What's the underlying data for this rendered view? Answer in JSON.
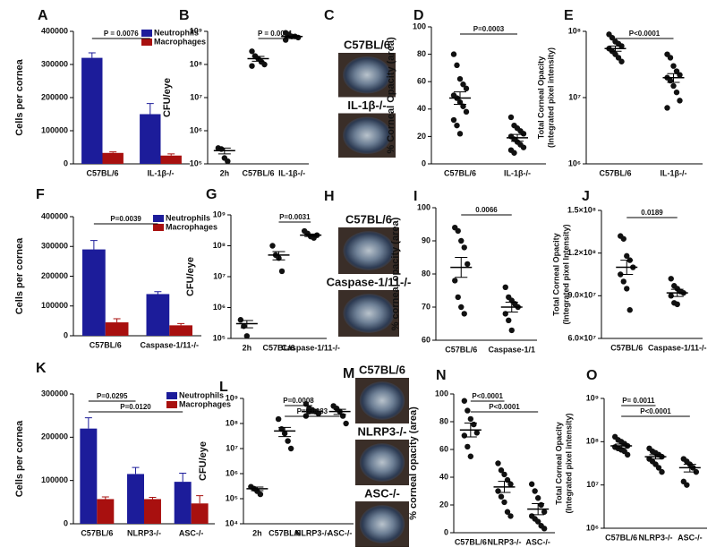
{
  "chart_data": [
    {
      "type": "bar",
      "panel": "A",
      "ylabel": "Cells per cornea",
      "categories": [
        "C57BL/6",
        "IL-1β-/-"
      ],
      "series": [
        {
          "name": "Neutrophils",
          "color": "#1c1c9a",
          "values": [
            320000,
            150000
          ],
          "errors": [
            15000,
            32000
          ]
        },
        {
          "name": "Macrophages",
          "color": "#a8100f",
          "values": [
            33000,
            25000
          ],
          "errors": [
            3000,
            5000
          ]
        }
      ],
      "ylim": [
        0,
        400000
      ],
      "yticks": [
        0,
        100000,
        200000,
        300000,
        400000
      ],
      "legend": "upper right",
      "brackets": [
        {
          "text": "P = 0.0076",
          "from": 0,
          "to": 1
        }
      ]
    },
    {
      "type": "dotplot",
      "panel": "B",
      "ylabel": "CFU/eye",
      "categories": [
        "2h",
        "C57BL/6",
        "IL-1β-/-"
      ],
      "log": true,
      "points": [
        [
          300000,
          280000,
          150000,
          120000
        ],
        [
          250000000,
          180000000,
          150000000,
          120000000,
          100000000,
          90000000
        ],
        [
          900000000,
          800000000,
          700000000,
          700000000,
          650000000,
          550000000
        ]
      ],
      "means": [
        250000,
        150000000,
        700000000
      ],
      "sems": [
        50000,
        25000000,
        50000000
      ],
      "ylim": [
        100000,
        1000000000
      ],
      "yticks": [
        {
          "value": 100000,
          "label": "10⁵"
        },
        {
          "value": 1000000,
          "label": "10⁶"
        },
        {
          "value": 10000000,
          "label": "10⁷"
        },
        {
          "value": 100000000,
          "label": "10⁸"
        },
        {
          "value": 1000000000,
          "label": "10⁹"
        }
      ],
      "brackets": [
        {
          "text": "P = 0.0001",
          "from": 1,
          "to": 2
        }
      ]
    },
    {
      "type": "image",
      "panel": "C",
      "labels": [
        "C57BL/6",
        "IL-1β-/-"
      ]
    },
    {
      "type": "dotplot",
      "panel": "D",
      "ylabel": "% Corneal  Opacity (area)",
      "categories": [
        "C57BL/6",
        "IL-1β-/-"
      ],
      "points": [
        [
          80,
          72,
          62,
          58,
          55,
          50,
          48,
          45,
          42,
          38,
          32,
          28,
          22
        ],
        [
          34,
          28,
          26,
          24,
          22,
          20,
          18,
          16,
          14,
          12,
          10,
          8
        ]
      ],
      "means": [
        48,
        19
      ],
      "sems": [
        4.5,
        2.5
      ],
      "ylim": [
        0,
        100
      ],
      "yticks": [
        0,
        20,
        40,
        60,
        80,
        100
      ],
      "brackets": [
        {
          "text": "P=0.0003",
          "from": 0,
          "to": 1
        }
      ]
    },
    {
      "type": "dotplot",
      "panel": "E",
      "ylabel": [
        "Total Corneal Opacity",
        "(Integrated pixel intensity)"
      ],
      "categories": [
        "C57BL/6",
        "IL-1β-/-"
      ],
      "log": true,
      "points": [
        [
          90000000,
          80000000,
          70000000,
          65000000,
          60000000,
          55000000,
          50000000,
          45000000,
          40000000,
          35000000
        ],
        [
          45000000,
          40000000,
          30000000,
          25000000,
          22000000,
          20000000,
          18000000,
          15000000,
          12000000,
          9000000,
          7000000
        ]
      ],
      "means": [
        55000000,
        20000000
      ],
      "sems": [
        5000000,
        3000000
      ],
      "ylim": [
        1000000,
        100000000
      ],
      "yticks": [
        {
          "value": 1000000,
          "label": "10⁶"
        },
        {
          "value": 10000000,
          "label": "10⁷"
        },
        {
          "value": 100000000,
          "label": "10⁸"
        }
      ],
      "brackets": [
        {
          "text": "P<0.0001",
          "from": 0,
          "to": 1
        }
      ]
    },
    {
      "type": "bar",
      "panel": "F",
      "ylabel": "Cells per cornea",
      "categories": [
        "C57BL/6",
        "Caspase-1/11-/-"
      ],
      "series": [
        {
          "name": "Neutrophils",
          "color": "#1c1c9a",
          "values": [
            290000,
            140000
          ],
          "errors": [
            30000,
            8000
          ]
        },
        {
          "name": "Macrophages",
          "color": "#a8100f",
          "values": [
            45000,
            35000
          ],
          "errors": [
            12000,
            6000
          ]
        }
      ],
      "ylim": [
        0,
        400000
      ],
      "yticks": [
        0,
        100000,
        200000,
        300000,
        400000
      ],
      "legend": "upper right",
      "brackets": [
        {
          "text": "P=0.0039",
          "from": 0,
          "to": 1
        }
      ]
    },
    {
      "type": "dotplot",
      "panel": "G",
      "ylabel": "CFU/eye",
      "categories": [
        "2h",
        "C57BL/6",
        "Caspase-1/11-/-"
      ],
      "log": true,
      "points": [
        [
          400000,
          250000,
          120000
        ],
        [
          100000000,
          50000000,
          40000000,
          15000000
        ],
        [
          300000000,
          250000000,
          200000000,
          180000000,
          220000000
        ]
      ],
      "means": [
        300000,
        50000000,
        220000000
      ],
      "sems": [
        80000,
        15000000,
        20000000
      ],
      "ylim": [
        100000,
        1000000000
      ],
      "yticks": [
        {
          "value": 100000,
          "label": "10⁵"
        },
        {
          "value": 1000000,
          "label": "10⁶"
        },
        {
          "value": 10000000,
          "label": "10⁷"
        },
        {
          "value": 100000000,
          "label": "10⁸"
        },
        {
          "value": 1000000000,
          "label": "10⁹"
        }
      ],
      "brackets": [
        {
          "text": "P=0.0031",
          "from": 1,
          "to": 2
        }
      ]
    },
    {
      "type": "image",
      "panel": "H",
      "labels": [
        "C57BL/6",
        "Caspase-1/11-/-"
      ]
    },
    {
      "type": "dotplot",
      "panel": "I",
      "ylabel": "% corneal opacity (area)",
      "categories": [
        "C57BL/6",
        "Caspase-1/1"
      ],
      "points": [
        [
          94,
          93,
          90,
          88,
          83,
          78,
          73,
          70,
          68
        ],
        [
          76,
          73,
          72,
          71,
          70,
          68,
          66,
          63
        ]
      ],
      "means": [
        82,
        70
      ],
      "sems": [
        3,
        1.5
      ],
      "ylim": [
        60,
        100
      ],
      "yticks": [
        60,
        70,
        80,
        90,
        100
      ],
      "brackets": [
        {
          "text": "0.0066",
          "from": 0,
          "to": 1
        }
      ]
    },
    {
      "type": "dotplot",
      "panel": "J",
      "ylabel": [
        "Total Corneal Opacity",
        "(Integrated pixel Intensity)"
      ],
      "categories": [
        "C57BL/6",
        "Caspase-1/11-/-"
      ],
      "points": [
        [
          132000000,
          130000000,
          118000000,
          115000000,
          110000000,
          105000000,
          100000000,
          95000000,
          80000000
        ],
        [
          102000000,
          97000000,
          95000000,
          93000000,
          92000000,
          90000000,
          85000000,
          84000000
        ]
      ],
      "means": [
        110000000,
        92000000
      ],
      "sems": [
        5000000,
        2500000
      ],
      "ylim": [
        60000000,
        150000000
      ],
      "yticks": [
        {
          "value": 60000000,
          "label": "6.0×10⁷"
        },
        {
          "value": 90000000,
          "label": "9.0×10⁷"
        },
        {
          "value": 120000000,
          "label": "1.2×10⁸"
        },
        {
          "value": 150000000,
          "label": "1.5×10⁸"
        }
      ],
      "brackets": [
        {
          "text": "0.0189",
          "from": 0,
          "to": 1
        }
      ]
    },
    {
      "type": "bar",
      "panel": "K",
      "ylabel": "Cells per cornea",
      "categories": [
        "C57BL/6",
        "NLRP3-/-",
        "ASC-/-"
      ],
      "series": [
        {
          "name": "Neutrophils",
          "color": "#1c1c9a",
          "values": [
            220000,
            115000,
            97000
          ],
          "errors": [
            25000,
            15000,
            20000
          ]
        },
        {
          "name": "Macrophages",
          "color": "#a8100f",
          "values": [
            57000,
            57000,
            47000
          ],
          "errors": [
            5000,
            4000,
            18000
          ]
        }
      ],
      "ylim": [
        0,
        300000
      ],
      "yticks": [
        0,
        100000,
        200000,
        300000
      ],
      "legend": "upper right",
      "brackets": [
        {
          "text": "P=0.0295",
          "from": 0,
          "to": 1
        },
        {
          "text": "P=0.0120",
          "from": 0,
          "to": 2
        }
      ]
    },
    {
      "type": "dotplot",
      "panel": "L",
      "ylabel": "CFU/eye",
      "categories": [
        "2h",
        "C57BL/6",
        "NLRP3-/-",
        "ASC-/-"
      ],
      "log": true,
      "points": [
        [
          300000,
          250000,
          200000,
          150000
        ],
        [
          150000000,
          60000000,
          40000000,
          20000000,
          10000000
        ],
        [
          600000000,
          400000000,
          350000000,
          300000000,
          250000000,
          200000000,
          300000000
        ],
        [
          500000000,
          400000000,
          300000000,
          200000000,
          100000000
        ]
      ],
      "means": [
        250000,
        50000000,
        300000000,
        300000000
      ],
      "sems": [
        40000,
        20000000,
        50000000,
        70000000
      ],
      "ylim": [
        10000,
        1000000000
      ],
      "yticks": [
        {
          "value": 10000,
          "label": "10⁴"
        },
        {
          "value": 100000,
          "label": "10⁵"
        },
        {
          "value": 1000000,
          "label": "10⁶"
        },
        {
          "value": 10000000,
          "label": "10⁷"
        },
        {
          "value": 100000000,
          "label": "10⁸"
        },
        {
          "value": 1000000000,
          "label": "10⁹"
        }
      ],
      "brackets": [
        {
          "text": "P=0.0008",
          "from": 1,
          "to": 2
        },
        {
          "text": "P=0.0083",
          "from": 1,
          "to": 3
        }
      ]
    },
    {
      "type": "image",
      "panel": "M",
      "labels": [
        "C57BL/6",
        "NLRP3-/-",
        "ASC-/-"
      ]
    },
    {
      "type": "dotplot",
      "panel": "N",
      "ylabel": "% corneal opacity (area)",
      "categories": [
        "C57BL/6",
        "NLRP3-/-",
        "ASC-/-"
      ],
      "points": [
        [
          95,
          88,
          82,
          78,
          72,
          70,
          62,
          55
        ],
        [
          50,
          45,
          42,
          38,
          35,
          30,
          26,
          22,
          15,
          12
        ],
        [
          35,
          30,
          25,
          20,
          15,
          12,
          10,
          8,
          5,
          3
        ]
      ],
      "means": [
        74,
        33,
        17
      ],
      "sems": [
        5,
        4,
        4
      ],
      "ylim": [
        0,
        100
      ],
      "yticks": [
        0,
        20,
        40,
        60,
        80,
        100
      ],
      "brackets": [
        {
          "text": "P<0.0001",
          "from": 0,
          "to": 1
        },
        {
          "text": "P<0.0001",
          "from": 0,
          "to": 2
        }
      ]
    },
    {
      "type": "dotplot",
      "panel": "O",
      "ylabel": [
        "Total Corneal Opacity",
        "(Integrated pixel intensity)"
      ],
      "categories": [
        "C57BL/6",
        "NLRP3-/-",
        "ASC-/-"
      ],
      "log": true,
      "points": [
        [
          130000000,
          110000000,
          100000000,
          90000000,
          80000000,
          75000000,
          70000000,
          65000000,
          60000000,
          50000000
        ],
        [
          70000000,
          60000000,
          55000000,
          50000000,
          45000000,
          40000000,
          35000000,
          30000000,
          25000000,
          20000000
        ],
        [
          40000000,
          35000000,
          30000000,
          25000000,
          20000000,
          12000000,
          10000000
        ]
      ],
      "means": [
        80000000,
        45000000,
        25000000
      ],
      "sems": [
        8000000,
        5000000,
        5000000
      ],
      "ylim": [
        1000000,
        1000000000
      ],
      "yticks": [
        {
          "value": 1000000,
          "label": "10⁶"
        },
        {
          "value": 10000000,
          "label": "10⁷"
        },
        {
          "value": 100000000,
          "label": "10⁸"
        },
        {
          "value": 1000000000,
          "label": "10⁹"
        }
      ],
      "brackets": [
        {
          "text": "P= 0.0011",
          "from": 0,
          "to": 1
        },
        {
          "text": "P<0.0001",
          "from": 0,
          "to": 2
        }
      ]
    }
  ]
}
